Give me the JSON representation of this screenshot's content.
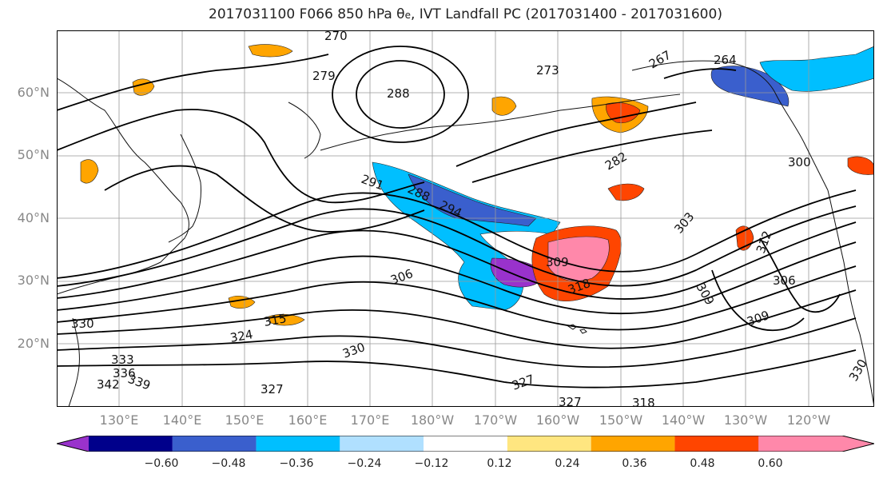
{
  "title": {
    "main": "2017031100 F066 850 hPa θ",
    "sub": "e",
    "rest": ", IVT Landfall PC (2017031400 - 2017031600)"
  },
  "lat_labels": [
    "60°N",
    "50°N",
    "40°N",
    "30°N",
    "20°N"
  ],
  "lon_labels": [
    "130°E",
    "140°E",
    "150°E",
    "160°E",
    "170°E",
    "180°W",
    "170°W",
    "160°W",
    "150°W",
    "140°W",
    "130°W",
    "120°W"
  ],
  "colorbar": {
    "colors": [
      "#9932cc",
      "#00008b",
      "#3a5fcd",
      "#00bfff",
      "#b0e0ff",
      "#ffffff",
      "#ffe680",
      "#ffa500",
      "#ff4500",
      "#b22222",
      "#ff88aa"
    ],
    "tick_labels": [
      "−0.60",
      "−0.48",
      "−0.36",
      "−0.24",
      "−0.12",
      "0.12",
      "0.24",
      "0.36",
      "0.48",
      "0.60"
    ]
  },
  "contour_labels": [
    "270",
    "279",
    "288",
    "267",
    "264",
    "273",
    "291",
    "288",
    "294",
    "282",
    "300",
    "303",
    "312",
    "309",
    "318",
    "306",
    "309",
    "306",
    "309",
    "315",
    "324",
    "330",
    "333",
    "336",
    "339",
    "342",
    "330",
    "327",
    "327",
    "327",
    "330",
    "318"
  ]
}
